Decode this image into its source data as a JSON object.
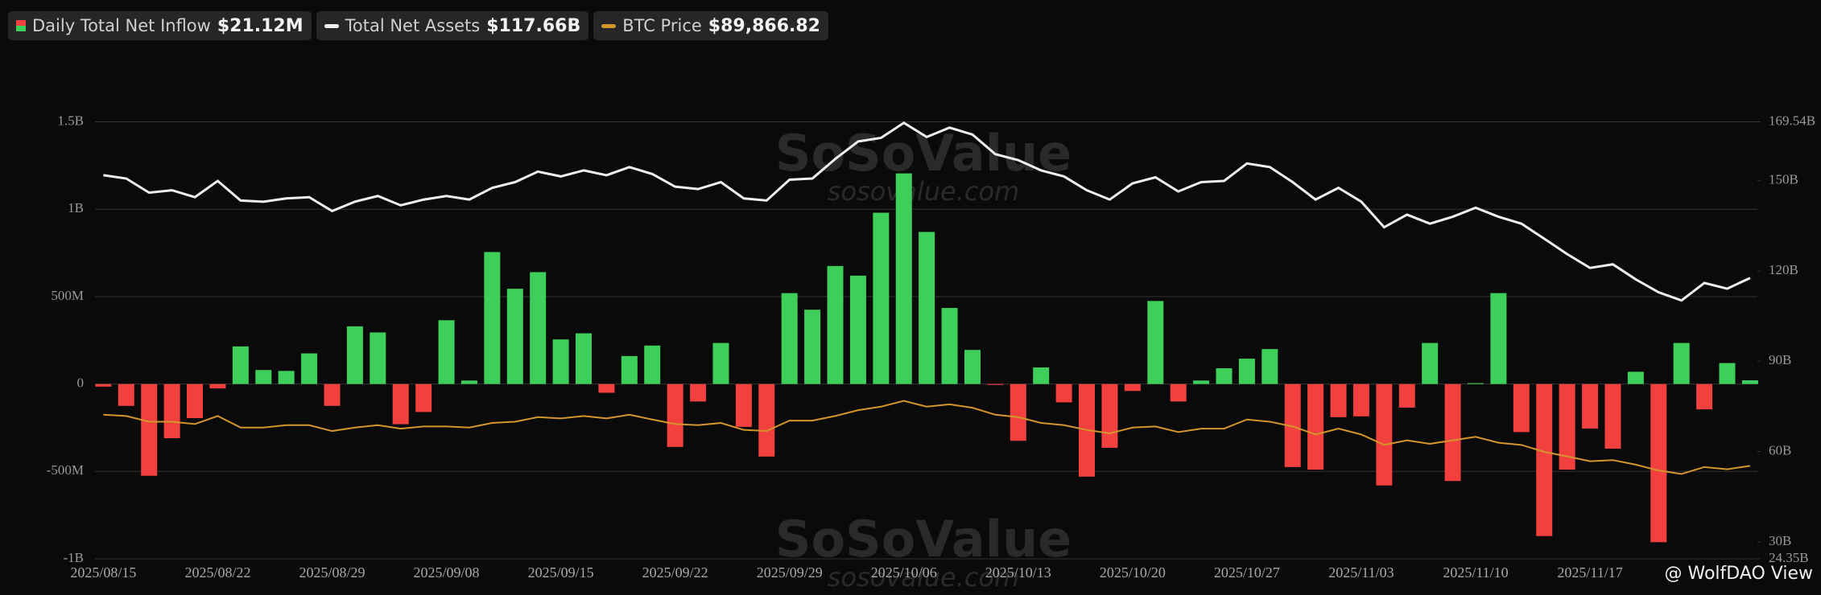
{
  "chart_data": {
    "type": "combo",
    "categories": [
      "2025/08/15",
      null,
      null,
      null,
      null,
      "2025/08/22",
      null,
      null,
      null,
      null,
      "2025/08/29",
      null,
      null,
      null,
      null,
      "2025/09/08",
      null,
      null,
      null,
      null,
      "2025/09/15",
      null,
      null,
      null,
      null,
      "2025/09/22",
      null,
      null,
      null,
      null,
      "2025/09/29",
      null,
      null,
      null,
      null,
      "2025/10/06",
      null,
      null,
      null,
      null,
      "2025/10/13",
      null,
      null,
      null,
      null,
      "2025/10/20",
      null,
      null,
      null,
      null,
      "2025/10/27",
      null,
      null,
      null,
      null,
      "2025/11/03",
      null,
      null,
      null,
      null,
      "2025/11/10",
      null,
      null,
      null,
      null,
      "2025/11/17",
      null,
      null,
      null,
      null,
      null,
      null,
      null
    ],
    "series": [
      {
        "name": "Daily Total Net Inflow",
        "header_value": "$21.12M",
        "type": "bar",
        "positive_color": "#3ecf5a",
        "negative_color": "#f2403f",
        "values": [
          -15,
          -125,
          -525,
          -310,
          -195,
          -25,
          215,
          80,
          75,
          175,
          -125,
          330,
          295,
          -230,
          -160,
          365,
          20,
          755,
          545,
          640,
          255,
          290,
          -50,
          160,
          220,
          -360,
          -100,
          235,
          -245,
          -415,
          520,
          425,
          675,
          620,
          980,
          1205,
          870,
          435,
          195,
          -5,
          -325,
          95,
          -105,
          -530,
          -365,
          -40,
          475,
          -100,
          20,
          90,
          145,
          200,
          -475,
          -490,
          -190,
          -185,
          -580,
          -135,
          235,
          -555,
          5,
          520,
          -275,
          -870,
          -490,
          -255,
          -370,
          70,
          -905,
          235,
          -145,
          120,
          21.12
        ]
      },
      {
        "name": "Total Net Assets",
        "header_value": "$117.66B",
        "type": "line",
        "axis": "y2",
        "color": "#eeeeee",
        "values": [
          151.8,
          150.7,
          146.0,
          146.8,
          144.5,
          149.9,
          143.4,
          143.0,
          144.1,
          144.5,
          139.9,
          143.0,
          144.9,
          141.8,
          143.7,
          144.9,
          143.7,
          147.6,
          149.5,
          153.0,
          151.4,
          153.4,
          151.8,
          154.5,
          152.2,
          148.0,
          147.2,
          149.5,
          144.1,
          143.4,
          150.3,
          150.7,
          157.2,
          163.0,
          164.2,
          169.2,
          164.5,
          167.6,
          165.3,
          158.8,
          156.8,
          153.4,
          151.4,
          146.8,
          143.7,
          149.1,
          151.1,
          146.4,
          149.5,
          149.9,
          155.7,
          154.5,
          149.5,
          143.7,
          147.6,
          143.0,
          134.5,
          138.7,
          135.7,
          138.0,
          141.0,
          138.0,
          135.7,
          130.7,
          125.6,
          121.0,
          122.2,
          117.2,
          112.9,
          110.2,
          116.0,
          114.1,
          117.66
        ]
      },
      {
        "name": "BTC Price",
        "header_value": "$89,866.82",
        "type": "line",
        "axis": "y3",
        "color": "#d4952a",
        "values": [
          117800,
          117100,
          114000,
          114000,
          112700,
          117100,
          110800,
          110800,
          112100,
          112100,
          108900,
          110800,
          112100,
          110200,
          111400,
          111400,
          110800,
          113300,
          114000,
          116500,
          115800,
          117100,
          115800,
          117800,
          115200,
          112700,
          112100,
          113300,
          109500,
          108900,
          114600,
          114600,
          117100,
          120300,
          122200,
          125400,
          122200,
          123500,
          121600,
          117800,
          116500,
          113300,
          112100,
          109500,
          107600,
          110800,
          111400,
          108300,
          110200,
          110200,
          115200,
          114000,
          111400,
          107000,
          110200,
          107000,
          101300,
          103800,
          101900,
          103800,
          105700,
          102500,
          101300,
          97500,
          95000,
          92400,
          93000,
          90500,
          87300,
          85400,
          89200,
          88000,
          89866.82
        ]
      }
    ],
    "ylim": [
      -1000,
      1500
    ],
    "yticks": [
      {
        "value": 1500,
        "label": "1.5B"
      },
      {
        "value": 1000,
        "label": "1B"
      },
      {
        "value": 500,
        "label": "500M"
      },
      0,
      {
        "value": -500,
        "label": "-500M"
      },
      {
        "value": -1000,
        "label": "-1B"
      }
    ],
    "y2lim": [
      24.35,
      169.54
    ],
    "y2ticks": [
      {
        "value": 169.54,
        "label": "169.54B"
      },
      {
        "value": 150,
        "label": "150B"
      },
      {
        "value": 120,
        "label": "120B"
      },
      {
        "value": 90,
        "label": "90B"
      },
      {
        "value": 60,
        "label": "60B"
      },
      {
        "value": 30,
        "label": "30B"
      },
      {
        "value": 24.35,
        "label": "24.35B"
      }
    ],
    "y3lim": [
      39000,
      278000
    ],
    "grid": true,
    "watermark": [
      "SoSoValue",
      "sosovalue.com"
    ],
    "credit": "@ WolfDAO View"
  }
}
